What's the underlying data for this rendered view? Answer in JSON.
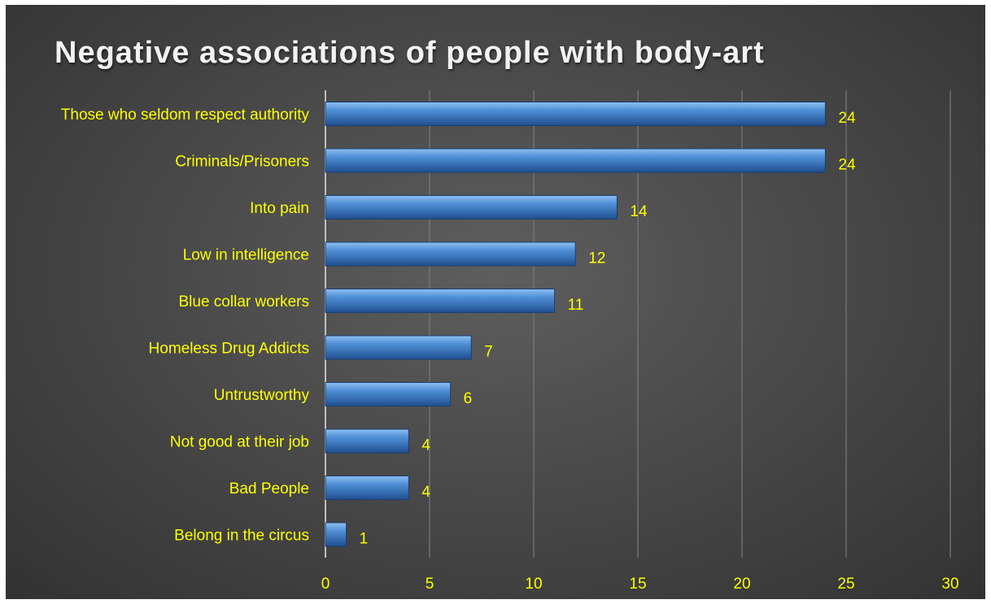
{
  "chart_data": {
    "type": "bar",
    "orientation": "horizontal",
    "title": "Negative associations of people with body-art",
    "categories": [
      "Those who seldom respect authority",
      "Criminals/Prisoners",
      "Into pain",
      "Low in intelligence",
      "Blue collar workers",
      "Homeless Drug Addicts",
      "Untrustworthy",
      "Not good at their job",
      "Bad People",
      "Belong in the circus"
    ],
    "values": [
      24,
      24,
      14,
      12,
      11,
      7,
      6,
      4,
      4,
      1
    ],
    "xlim": [
      0,
      30
    ],
    "xticks": [
      0,
      5,
      10,
      15,
      20,
      25,
      30
    ],
    "grid": true,
    "colors": {
      "bar": "#4a86c8",
      "label": "#ffff00",
      "title": "#f2f2f2",
      "background": "#4a4a4a"
    }
  }
}
